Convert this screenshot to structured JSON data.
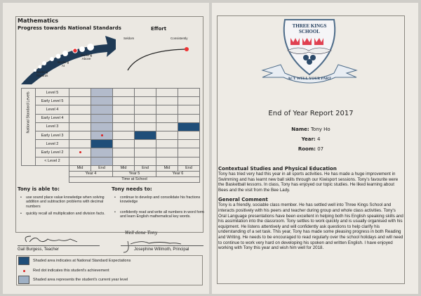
{
  "left": {
    "subject": "Mathematics",
    "progress_title": "Progress towards National Standards",
    "effort_title": "Effort",
    "arrow_labels": [
      "Working Towards",
      "Working At",
      "Working Above"
    ],
    "effort_labels": {
      "low": "Seldom",
      "high": "Consistently"
    },
    "grid": {
      "axis_label": "National Standard Levels",
      "levels": [
        "Level 5",
        "Early Level 5",
        "Level 4",
        "Early Level 4",
        "Level 3",
        "Early Level 3",
        "Level 2",
        "Early Level 2",
        "< Level 2"
      ],
      "periods": [
        "Mid",
        "End",
        "Mid",
        "End",
        "Mid",
        "End"
      ],
      "years": [
        "Year 4",
        "Year 5",
        "Year 6"
      ],
      "x_label": "Time at School",
      "current_year_column": "Year 4 End",
      "expectations": [
        {
          "period": "Year 4 End",
          "level": "Level 2"
        },
        {
          "period": "Year 5 End",
          "level": "Early Level 3"
        },
        {
          "period": "Year 6 End",
          "level": "Level 3"
        }
      ],
      "achievements": [
        {
          "period": "Year 4 Mid",
          "level": "Early Level 2"
        },
        {
          "period": "Year 4 End",
          "level": "Early Level 3"
        }
      ]
    },
    "able_title": "Tony is able to:",
    "able": [
      "use sound place value knowledge when solving addition and subtraction problems with decimal numbers",
      "quickly recall all multiplication and division facts."
    ],
    "needs_title": "Tony needs to:",
    "needs": [
      "continue to develop and consolidate his fractions knowledge",
      "confidently read and write all numbers in word form and learn English mathematical key words."
    ],
    "teacher_signature": "GBurgess",
    "teacher": "Gail Burgess, Teacher",
    "principal_note": "Well done Tony",
    "principal_signature": "JWillmoth",
    "principal": "Josephine Willmoth, Principal",
    "legend": [
      "Shaded area indicates at National Standard Expectations",
      "Red dot indicates this student's achievement",
      "Shaded area represents the student's current year level"
    ],
    "colors": {
      "expectation": "#1f4e79",
      "achievement": "#dd2222",
      "current": "#b3bbcb",
      "arrow": "#1f3a55"
    }
  },
  "right": {
    "logo": {
      "name": "THREE KINGS SCHOOL",
      "motto": "ACT WELL YOUR PART"
    },
    "title": "End of Year Report 2017",
    "name_label": "Name:",
    "name": "Tony Ho",
    "year_label": "Year:",
    "year": "4",
    "room_label": "Room:",
    "room": "07",
    "sections": [
      {
        "title": "Contextual Studies and Physical Education",
        "text": "Tony has tried very had this year in all sports activities. He has made a huge improvement in Swimming and has learnt new ball skills through our Kiwisport sessions. Tony's favourite were the Basketball lessons. In class, Tony has enjoyed our topic studies. He liked learning about Bees and the visit from the Bee Lady."
      },
      {
        "title": "General Comment",
        "text": "Tony is a friendly, sociable class member. He has settled well into Three Kings School and interacts positively with his peers and teacher during group and whole class activities. Tony's Oral Language presentations have been excellent in helping both his English speaking skills and his assimilation into the classroom. Tony settles to work quickly and is usually organised with his equipment. He listens attentively and will confidently ask questions to help clarify his understanding of a set task. This year, Tony has made some pleasing progress in both Reading and Writing. He needs to be encouraged to read regularly over the school holidays and will need to continue to work very hard on developing his spoken and written English. I have enjoyed working with Tony this year and wish him well for 2018."
      }
    ]
  }
}
